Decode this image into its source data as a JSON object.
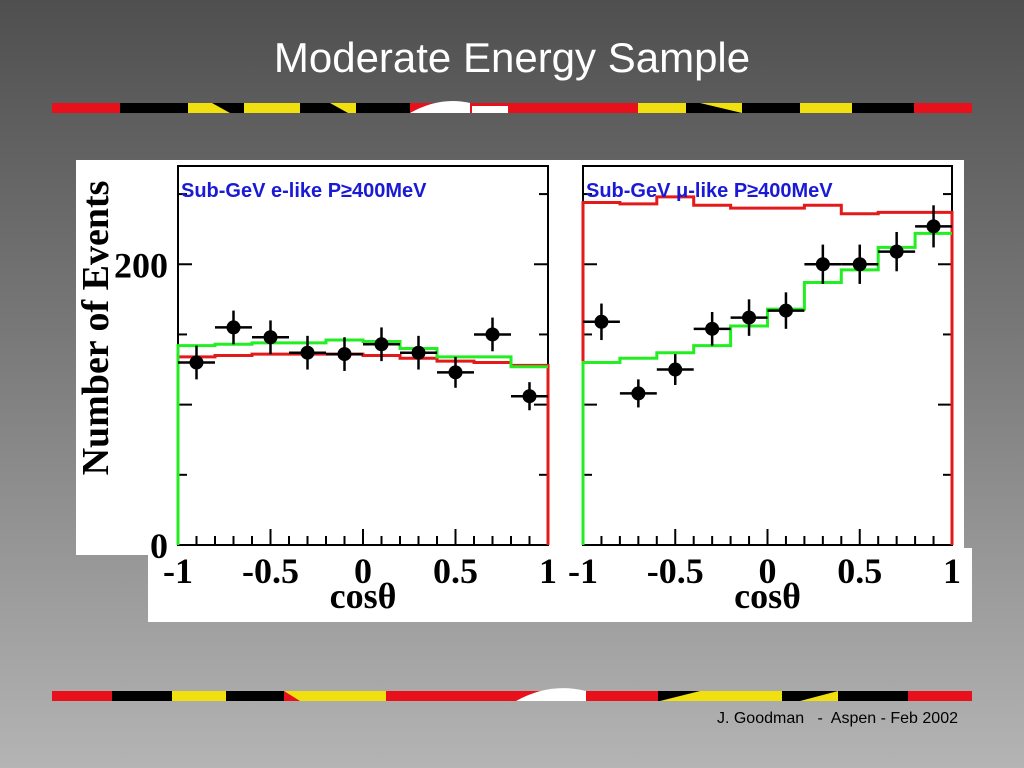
{
  "slide": {
    "title": "Moderate Energy Sample",
    "footer": "J. Goodman   -  Aspen - Feb 2002"
  },
  "colors": {
    "stripe_red": "#e8101a",
    "stripe_black": "#000000",
    "stripe_yellow": "#f0e010",
    "stripe_white": "#ffffff",
    "data_points": "#000000",
    "no_oscillation": "#e41a1a",
    "oscillation_fit": "#22ee22",
    "panel_title": "#1a1ad6"
  },
  "chart_data": [
    {
      "type": "line",
      "title": "Sub-GeV e-like P≥400MeV",
      "xlabel": "cosθ",
      "ylabel": "Number of Events",
      "xlim": [
        -1,
        1
      ],
      "ylim": [
        0,
        270
      ],
      "xticks": [
        "-1",
        "-0.5",
        "0",
        "0.5",
        "1"
      ],
      "yticks": [
        "0",
        "200"
      ],
      "grid": false,
      "bin_edges": [
        -1,
        -0.8,
        -0.6,
        -0.4,
        -0.2,
        0,
        0.2,
        0.4,
        0.6,
        0.8,
        1
      ],
      "series": [
        {
          "kind": "points",
          "x": [
            -0.9,
            -0.7,
            -0.5,
            -0.3,
            -0.1,
            0.1,
            0.3,
            0.5,
            0.7,
            0.9
          ],
          "y": [
            130,
            155,
            148,
            137,
            136,
            143,
            137,
            123,
            150,
            106
          ],
          "yerr": [
            12,
            12,
            12,
            12,
            12,
            12,
            12,
            11,
            12,
            10
          ]
        },
        {
          "kind": "step",
          "color": "#e41a1a",
          "values": [
            134,
            135,
            136,
            136,
            136,
            135,
            133,
            131,
            130,
            128
          ]
        },
        {
          "kind": "step",
          "color": "#22ee22",
          "values": [
            142,
            143,
            144,
            144,
            146,
            145,
            140,
            134,
            134,
            127
          ]
        }
      ]
    },
    {
      "type": "line",
      "title": "Sub-GeV μ-like P≥400MeV",
      "xlabel": "cosθ",
      "ylabel": "",
      "xlim": [
        -1,
        1
      ],
      "ylim": [
        0,
        270
      ],
      "xticks": [
        "-1",
        "-0.5",
        "0",
        "0.5",
        "1"
      ],
      "yticks": [],
      "grid": false,
      "bin_edges": [
        -1,
        -0.8,
        -0.6,
        -0.4,
        -0.2,
        0,
        0.2,
        0.4,
        0.6,
        0.8,
        1
      ],
      "series": [
        {
          "kind": "points",
          "x": [
            -0.9,
            -0.7,
            -0.5,
            -0.3,
            -0.1,
            0.1,
            0.3,
            0.5,
            0.7,
            0.9
          ],
          "y": [
            159,
            108,
            125,
            154,
            162,
            167,
            200,
            200,
            209,
            227
          ],
          "yerr": [
            13,
            10,
            11,
            12,
            13,
            13,
            14,
            14,
            14,
            15
          ]
        },
        {
          "kind": "step",
          "color": "#e41a1a",
          "values": [
            244,
            243,
            248,
            242,
            240,
            240,
            242,
            236,
            237,
            237
          ]
        },
        {
          "kind": "step",
          "color": "#22ee22",
          "values": [
            130,
            133,
            137,
            142,
            156,
            168,
            187,
            196,
            212,
            222
          ]
        }
      ]
    }
  ]
}
